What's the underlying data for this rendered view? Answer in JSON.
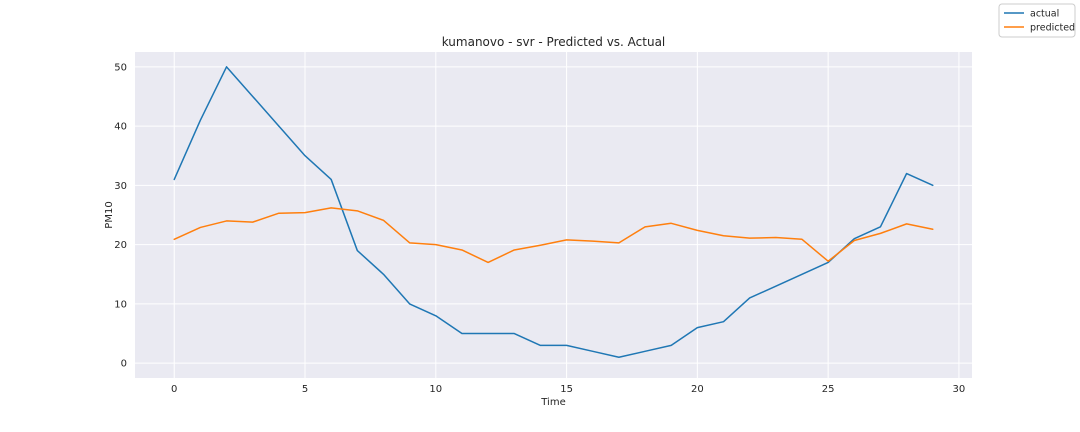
{
  "chart_data": {
    "type": "line",
    "title": "kumanovo - svr - Predicted vs. Actual",
    "xlabel": "Time",
    "ylabel": "PM10",
    "xlim": [
      -1.5,
      30.5
    ],
    "ylim": [
      -2.5,
      52.5
    ],
    "xticks": [
      0,
      5,
      10,
      15,
      20,
      25,
      30
    ],
    "yticks": [
      0,
      10,
      20,
      30,
      40,
      50
    ],
    "grid": true,
    "legend_position": "top-right",
    "x": [
      0,
      1,
      2,
      3,
      4,
      5,
      6,
      7,
      8,
      9,
      10,
      11,
      12,
      13,
      14,
      15,
      16,
      17,
      18,
      19,
      20,
      21,
      22,
      23,
      24,
      25,
      26,
      27,
      28,
      29
    ],
    "series": [
      {
        "name": "actual",
        "color": "#1f77b4",
        "values": [
          31,
          41,
          50,
          45,
          40,
          35,
          31,
          19,
          15,
          10,
          8,
          5,
          5,
          5,
          3,
          3,
          2,
          1,
          2,
          3,
          6,
          7,
          11,
          13,
          15,
          17,
          21,
          23,
          32,
          30
        ]
      },
      {
        "name": "predicted",
        "color": "#ff7f0e",
        "values": [
          20.9,
          22.9,
          24.0,
          23.8,
          25.3,
          25.4,
          26.2,
          25.7,
          24.1,
          20.3,
          20.0,
          19.1,
          17.0,
          19.1,
          19.9,
          20.8,
          20.6,
          20.3,
          23.0,
          23.6,
          22.4,
          21.5,
          21.1,
          21.2,
          20.9,
          17.2,
          20.7,
          21.9,
          23.5,
          22.6
        ]
      }
    ]
  }
}
